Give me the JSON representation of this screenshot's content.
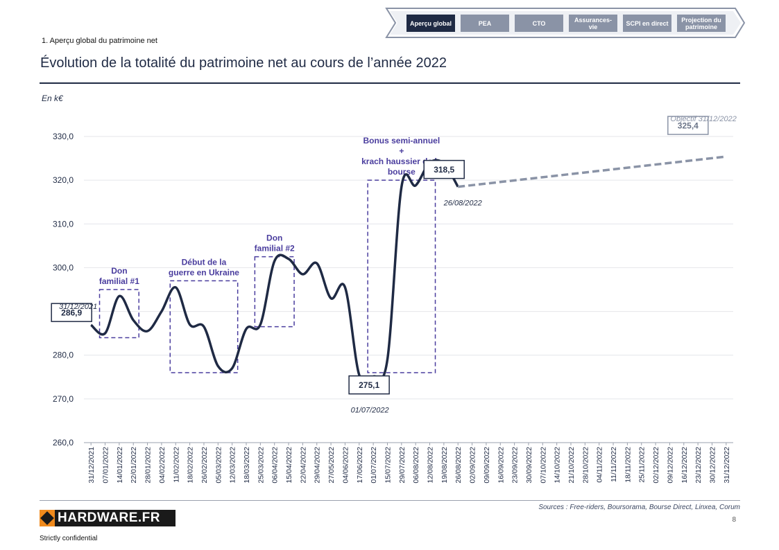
{
  "nav": {
    "items": [
      {
        "label": "Aperçu global",
        "active": true
      },
      {
        "label": "PEA",
        "active": false
      },
      {
        "label": "CTO",
        "active": false
      },
      {
        "label": "Assurances-vie",
        "active": false
      },
      {
        "label": "SCPI en direct",
        "active": false
      },
      {
        "label": "Projection du patrimoine",
        "active": false
      }
    ]
  },
  "header": {
    "section_label": "1. Aperçu global du patrimoine net",
    "title": "Évolution de la totalité du patrimoine net au cours de l’année 2022",
    "unit": "En k€"
  },
  "chart_data": {
    "type": "line",
    "title": "Évolution de la totalité du patrimoine net au cours de l’année 2022",
    "ylabel": "En k€",
    "ylim": [
      260,
      330
    ],
    "yticks": [
      "260,0",
      "270,0",
      "280,0",
      "290,0",
      "300,0",
      "310,0",
      "320,0",
      "330,0"
    ],
    "grid": true,
    "categories": [
      "31/12/2021",
      "07/01/2022",
      "14/01/2022",
      "22/01/2022",
      "28/01/2022",
      "04/02/2022",
      "11/02/2022",
      "18/02/2022",
      "26/02/2022",
      "05/03/2022",
      "12/03/2022",
      "18/03/2022",
      "25/03/2022",
      "06/04/2022",
      "15/04/2022",
      "22/04/2022",
      "29/04/2022",
      "27/05/2022",
      "04/06/2022",
      "17/06/2022",
      "01/07/2022",
      "15/07/2022",
      "29/07/2022",
      "06/08/2022",
      "12/08/2022",
      "19/08/2022",
      "26/08/2022",
      "02/09/2022",
      "09/09/2022",
      "16/09/2022",
      "23/09/2022",
      "30/09/2022",
      "07/10/2022",
      "14/10/2022",
      "21/10/2022",
      "28/10/2022",
      "04/11/2022",
      "11/11/2022",
      "18/11/2022",
      "25/11/2022",
      "02/12/2022",
      "09/12/2022",
      "16/12/2022",
      "23/12/2022",
      "30/12/2022",
      "31/12/2022"
    ],
    "series": [
      {
        "name": "Patrimoine net",
        "style": "solid",
        "color": "#1f2a44",
        "values": [
          286.9,
          285.0,
          293.5,
          288.0,
          285.5,
          290.0,
          295.5,
          287.0,
          286.5,
          277.5,
          277.0,
          286.0,
          287.0,
          301.5,
          302.0,
          298.5,
          301.0,
          293.0,
          295.5,
          275.5,
          275.1,
          279.0,
          318.5,
          318.8,
          324.0,
          323.8,
          318.5,
          null,
          null,
          null,
          null,
          null,
          null,
          null,
          null,
          null,
          null,
          null,
          null,
          null,
          null,
          null,
          null,
          null,
          null,
          null
        ]
      },
      {
        "name": "Projection",
        "style": "dashed",
        "color": "#8a93a6",
        "values": [
          null,
          null,
          null,
          null,
          null,
          null,
          null,
          null,
          null,
          null,
          null,
          null,
          null,
          null,
          null,
          null,
          null,
          null,
          null,
          null,
          null,
          null,
          null,
          null,
          null,
          null,
          318.5,
          null,
          null,
          null,
          null,
          null,
          null,
          null,
          null,
          null,
          null,
          null,
          null,
          null,
          null,
          null,
          null,
          null,
          null,
          325.4
        ]
      }
    ],
    "value_labels": [
      {
        "index": 0,
        "value": 286.9,
        "text": "286,9",
        "date": "31/12/2021"
      },
      {
        "index": 20,
        "value": 275.1,
        "text": "275,1",
        "date": "01/07/2022"
      },
      {
        "index": 26,
        "value": 318.5,
        "text": "318,5",
        "date": "26/08/2022"
      },
      {
        "index": 45,
        "value": 325.4,
        "text": "325,4",
        "date": "Objectif 31/12/2022"
      }
    ],
    "annotations": [
      {
        "text": [
          "Don",
          "familial #1"
        ],
        "from_index": 1,
        "to_index": 3,
        "y_range": [
          284,
          295
        ]
      },
      {
        "text": [
          "Début de la",
          "guerre en Ukraine"
        ],
        "from_index": 6,
        "to_index": 10,
        "y_range": [
          276,
          297
        ]
      },
      {
        "text": [
          "Don",
          "familial #2"
        ],
        "from_index": 12,
        "to_index": 14,
        "y_range": [
          286.5,
          302.5
        ]
      },
      {
        "text": [
          "Bonus semi-annuel",
          "+",
          "krach haussier de la",
          "bourse"
        ],
        "from_index": 20,
        "to_index": 24,
        "y_range": [
          276,
          320
        ]
      }
    ]
  },
  "footer": {
    "logo_text": "HARDWARE.FR",
    "confidential": "Strictly confidential",
    "sources": "Sources : Free-riders, Boursorama, Bourse Direct, Linxea, Corum",
    "page_number": "8"
  }
}
